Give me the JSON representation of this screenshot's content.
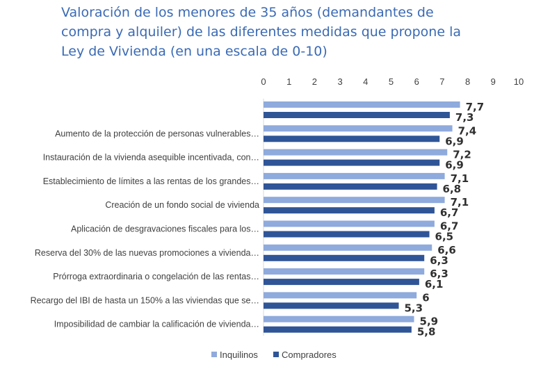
{
  "chart_data": {
    "type": "bar",
    "orientation": "horizontal",
    "title": [
      "Valoración de los menores de 35 años (demandantes de",
      "compra y alquiler) de las diferentes medidas que propone la",
      "Ley de Vivienda (en una escala de 0-10)"
    ],
    "categories": [
      "",
      "Aumento de la protección de personas vulnerables…",
      "Instauración de la vivienda asequible incentivada, con…",
      "Establecimiento de límites a las rentas de los grandes…",
      "Creación de un fondo social de vivienda",
      "Aplicación de desgravaciones fiscales para los…",
      "Reserva del 30% de las nuevas promociones a vivienda…",
      "Prórroga extraordinaria o congelación de las rentas…",
      "Recargo del IBI de hasta un 150% a las viviendas que se…",
      "Imposibilidad de cambiar la calificación de vivienda…"
    ],
    "series": [
      {
        "name": "Inquilinos",
        "color": "#8faadc",
        "values": [
          7.7,
          7.4,
          7.2,
          7.1,
          7.1,
          6.7,
          6.6,
          6.3,
          6,
          5.9
        ]
      },
      {
        "name": "Compradores",
        "color": "#2f5597",
        "values": [
          7.3,
          6.9,
          6.9,
          6.8,
          6.7,
          6.5,
          6.3,
          6.1,
          5.3,
          5.8
        ]
      }
    ],
    "xlim": [
      0,
      10
    ],
    "xticks": [
      "0",
      "1",
      "2",
      "3",
      "4",
      "5",
      "6",
      "7",
      "8",
      "9",
      "10"
    ],
    "data_labels": [
      [
        "7,7",
        "7,3"
      ],
      [
        "7,4",
        "6,9"
      ],
      [
        "7,2",
        "6,9"
      ],
      [
        "7,1",
        "6,8"
      ],
      [
        "7,1",
        "6,7"
      ],
      [
        "6,7",
        "6,5"
      ],
      [
        "6,6",
        "6,3"
      ],
      [
        "6,3",
        "6,1"
      ],
      [
        "6",
        "5,3"
      ],
      [
        "5,9",
        "5,8"
      ]
    ],
    "xaxis_position": "top",
    "grid": false,
    "legend_position": "bottom"
  }
}
